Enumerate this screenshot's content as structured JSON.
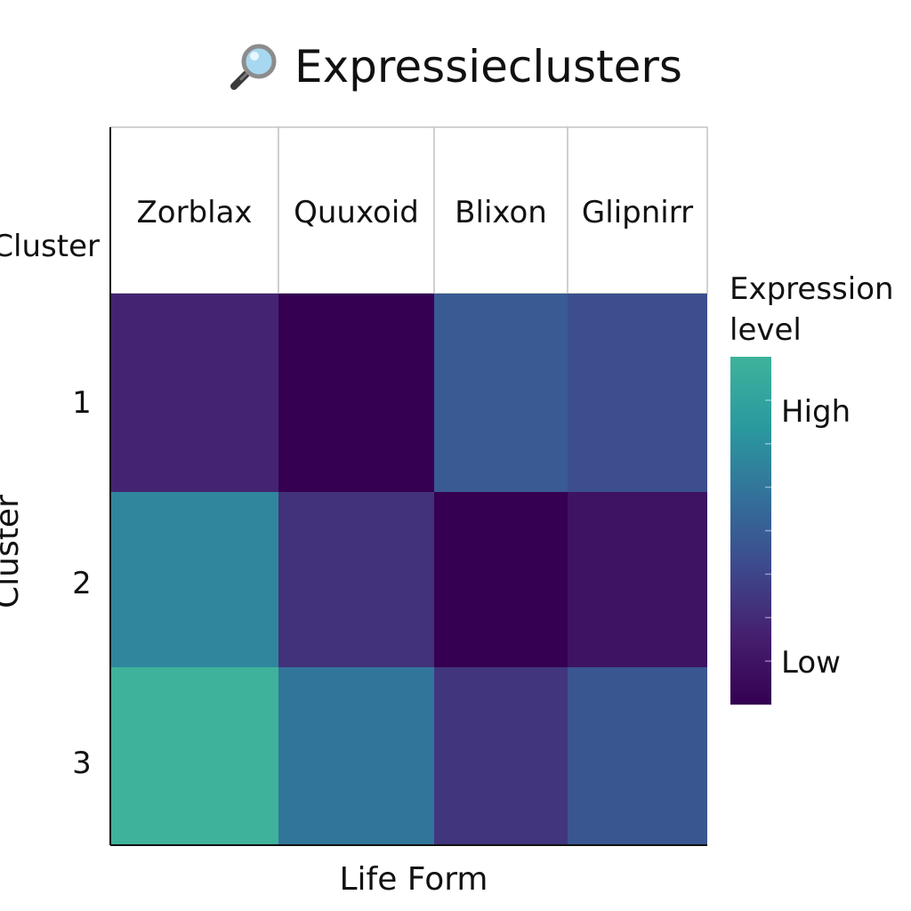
{
  "chart_data": {
    "type": "heatmap",
    "title": "Expressieclusters",
    "title_icon": "magnifier-icon",
    "corner_label": "Cluster",
    "xlabel": "Life Form",
    "ylabel": "Cluster",
    "columns": [
      "Zorblax",
      "Quuxoid",
      "Blixon",
      "Glipnirr"
    ],
    "rows": [
      "1",
      "2",
      "3"
    ],
    "values": [
      [
        0.22,
        0.0,
        0.48,
        0.42
      ],
      [
        0.7,
        0.28,
        0.0,
        0.12
      ],
      [
        1.0,
        0.62,
        0.3,
        0.46
      ]
    ],
    "value_range": [
      0,
      1
    ],
    "colorscale": [
      "#350051",
      "#45206f",
      "#3d4a8d",
      "#33719a",
      "#2a9a9f",
      "#3fb29b"
    ],
    "legend": {
      "title": "Expression level",
      "title_lines": [
        "Expression",
        "level"
      ],
      "high_label": "High",
      "low_label": "Low",
      "placement": "right"
    },
    "grid": false
  }
}
